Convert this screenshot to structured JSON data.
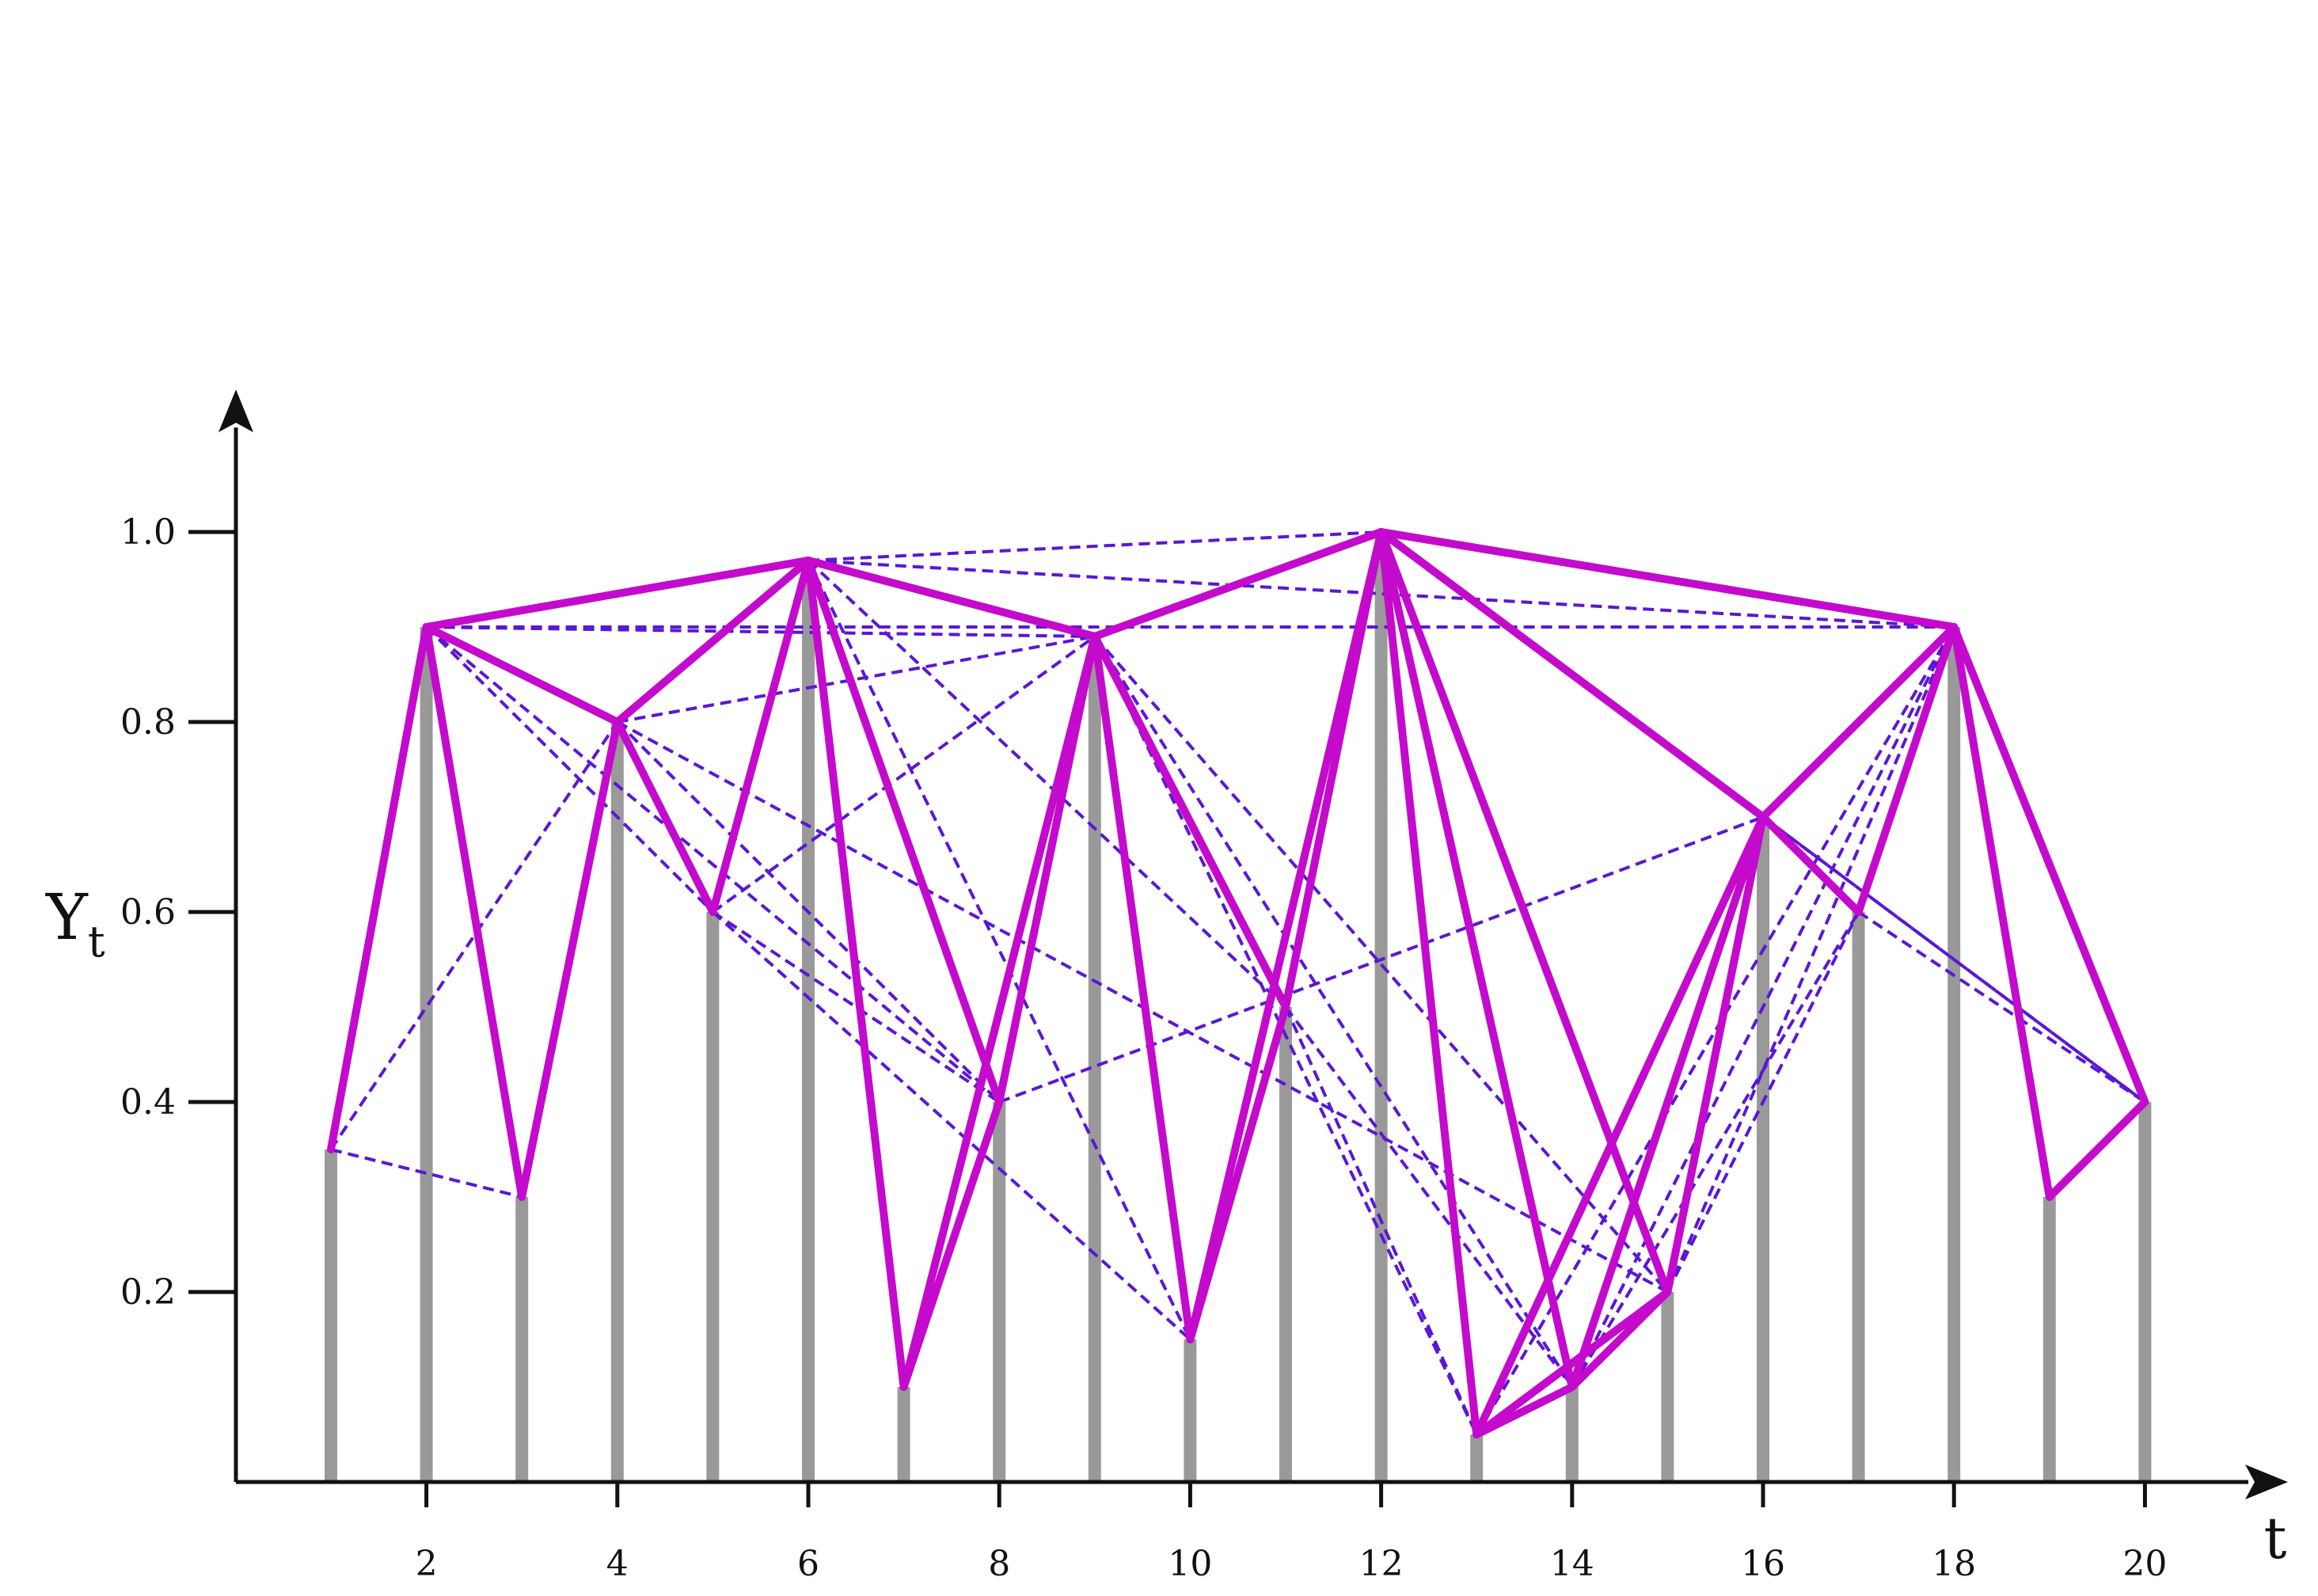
{
  "chart_data": {
    "type": "visibility-graph",
    "xlabel": "t",
    "ylabel": "Y",
    "ylabel_subscript": "t",
    "x_ticks": [
      2,
      4,
      6,
      8,
      10,
      12,
      14,
      16,
      18,
      20
    ],
    "x_tick_labels": [
      "2",
      "4",
      "6",
      "8",
      "10",
      "12",
      "14",
      "16",
      "18",
      "20"
    ],
    "y_ticks": [
      0.2,
      0.4,
      0.6,
      0.8,
      1.0
    ],
    "y_tick_labels": [
      "0.2",
      "0.4",
      "0.6",
      "0.8",
      "1.0"
    ],
    "xlim": [
      0,
      21
    ],
    "ylim": [
      0,
      1.12
    ],
    "series": [
      {
        "t": [
          1,
          2,
          3,
          4,
          5,
          6,
          7,
          8,
          9,
          10,
          11,
          12,
          13,
          14,
          15,
          16,
          17,
          18,
          19,
          20
        ],
        "values": [
          0.35,
          0.9,
          0.3,
          0.8,
          0.6,
          0.97,
          0.1,
          0.4,
          0.89,
          0.15,
          0.5,
          1.0,
          0.05,
          0.1,
          0.2,
          0.7,
          0.6,
          0.9,
          0.3,
          0.4
        ]
      }
    ],
    "solid_edges": [
      [
        1,
        2
      ],
      [
        2,
        3
      ],
      [
        2,
        4
      ],
      [
        2,
        6
      ],
      [
        3,
        4
      ],
      [
        4,
        5
      ],
      [
        4,
        6
      ],
      [
        5,
        6
      ],
      [
        6,
        7
      ],
      [
        6,
        8
      ],
      [
        6,
        9
      ],
      [
        7,
        8
      ],
      [
        7,
        9
      ],
      [
        8,
        9
      ],
      [
        9,
        10
      ],
      [
        9,
        11
      ],
      [
        9,
        12
      ],
      [
        10,
        11
      ],
      [
        10,
        12
      ],
      [
        11,
        12
      ],
      [
        12,
        13
      ],
      [
        12,
        14
      ],
      [
        12,
        15
      ],
      [
        12,
        16
      ],
      [
        12,
        18
      ],
      [
        13,
        14
      ],
      [
        13,
        15
      ],
      [
        13,
        16
      ],
      [
        14,
        15
      ],
      [
        14,
        16
      ],
      [
        15,
        16
      ],
      [
        16,
        17
      ],
      [
        16,
        18
      ],
      [
        17,
        18
      ],
      [
        18,
        19
      ],
      [
        18,
        20
      ],
      [
        19,
        20
      ]
    ],
    "dashed_edges": [
      [
        1,
        3
      ],
      [
        1,
        4
      ],
      [
        2,
        5
      ],
      [
        2,
        8
      ],
      [
        2,
        9
      ],
      [
        2,
        18
      ],
      [
        4,
        8
      ],
      [
        4,
        9
      ],
      [
        4,
        15
      ],
      [
        5,
        8
      ],
      [
        5,
        9
      ],
      [
        5,
        10
      ],
      [
        6,
        10
      ],
      [
        6,
        11
      ],
      [
        6,
        12
      ],
      [
        6,
        18
      ],
      [
        8,
        16
      ],
      [
        9,
        13
      ],
      [
        9,
        14
      ],
      [
        9,
        15
      ],
      [
        11,
        13
      ],
      [
        11,
        14
      ],
      [
        12,
        20
      ],
      [
        13,
        18
      ],
      [
        14,
        17
      ],
      [
        14,
        18
      ],
      [
        15,
        17
      ],
      [
        15,
        18
      ],
      [
        16,
        20
      ],
      [
        17,
        20
      ]
    ],
    "colors": {
      "solid_edge": "#c40acc",
      "dashed_edge": "#5a17d6",
      "stem": "#999999",
      "axis": "#111111"
    }
  }
}
